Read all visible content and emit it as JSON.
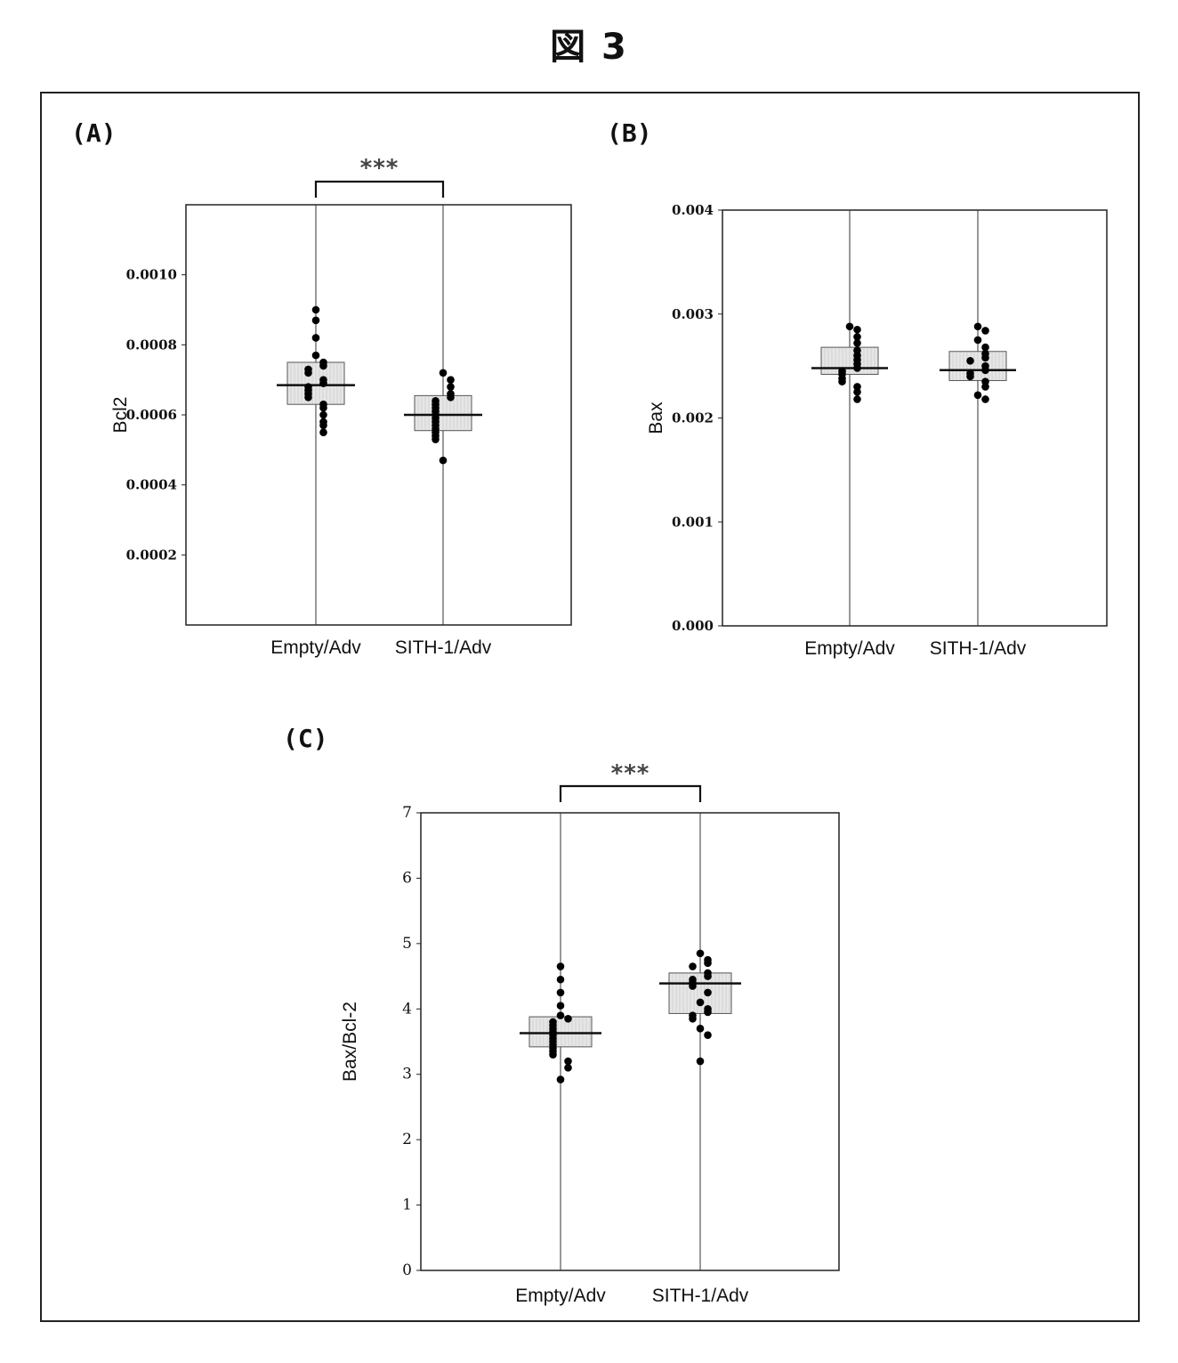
{
  "figure_title": "図 3",
  "panels": [
    {
      "label": "(A)"
    },
    {
      "label": "(B)"
    },
    {
      "label": "(C)"
    }
  ],
  "chart_data": [
    {
      "panel": "(A)",
      "type": "scatter",
      "ylabel": "Bcl2",
      "xlabel": "",
      "ylim": [
        0,
        0.0012
      ],
      "yticks": [
        0.0002,
        0.0004,
        0.0006,
        0.0008,
        0.001
      ],
      "ytick_labels": [
        "0.0002",
        "0.0004",
        "0.0006",
        "0.0008",
        "0.0010"
      ],
      "categories": [
        "Empty/Adv",
        "SITH-1/Adv"
      ],
      "significance": "***",
      "grid": false,
      "series": [
        {
          "category": "Empty/Adv",
          "box_low": 0.00063,
          "box_high": 0.00075,
          "median": 0.000685,
          "points": [
            0.0009,
            0.00087,
            0.00082,
            0.00077,
            0.00075,
            0.00074,
            0.00073,
            0.00072,
            0.0007,
            0.00069,
            0.00068,
            0.00067,
            0.00066,
            0.00065,
            0.00063,
            0.00062,
            0.0006,
            0.00058,
            0.00057,
            0.00055
          ]
        },
        {
          "category": "SITH-1/Adv",
          "box_low": 0.000555,
          "box_high": 0.000655,
          "median": 0.0006,
          "points": [
            0.00072,
            0.0007,
            0.00068,
            0.00066,
            0.00065,
            0.00064,
            0.00063,
            0.00062,
            0.00061,
            0.0006,
            0.00059,
            0.00058,
            0.00057,
            0.00056,
            0.00055,
            0.00054,
            0.00053,
            0.00047
          ]
        }
      ]
    },
    {
      "panel": "(B)",
      "type": "scatter",
      "ylabel": "Bax",
      "xlabel": "",
      "ylim": [
        0,
        0.004
      ],
      "yticks": [
        0.0,
        0.001,
        0.002,
        0.003,
        0.004
      ],
      "ytick_labels": [
        "0.000",
        "0.001",
        "0.002",
        "0.003",
        "0.004"
      ],
      "categories": [
        "Empty/Adv",
        "SITH-1/Adv"
      ],
      "grid": false,
      "series": [
        {
          "category": "Empty/Adv",
          "box_low": 0.00242,
          "box_high": 0.00268,
          "median": 0.00248,
          "points": [
            0.00288,
            0.00285,
            0.00278,
            0.00272,
            0.00265,
            0.0026,
            0.00256,
            0.00252,
            0.00248,
            0.00245,
            0.00242,
            0.00238,
            0.00235,
            0.0023,
            0.00225,
            0.00218
          ]
        },
        {
          "category": "SITH-1/Adv",
          "box_low": 0.00236,
          "box_high": 0.00264,
          "median": 0.00246,
          "points": [
            0.00288,
            0.00284,
            0.00275,
            0.00268,
            0.00262,
            0.00258,
            0.00255,
            0.0025,
            0.00246,
            0.00243,
            0.0024,
            0.00235,
            0.0023,
            0.00222,
            0.00218
          ]
        }
      ]
    },
    {
      "panel": "(C)",
      "type": "scatter",
      "ylabel": "Bax/Bcl-2",
      "xlabel": "",
      "ylim": [
        0,
        7
      ],
      "yticks": [
        0,
        1,
        2,
        3,
        4,
        5,
        6,
        7
      ],
      "ytick_labels": [
        "0",
        "1",
        "2",
        "3",
        "4",
        "5",
        "6",
        "7"
      ],
      "categories": [
        "Empty/Adv",
        "SITH-1/Adv"
      ],
      "significance": "***",
      "grid": false,
      "series": [
        {
          "category": "Empty/Adv",
          "box_low": 3.42,
          "box_high": 3.88,
          "median": 3.63,
          "points": [
            4.65,
            4.45,
            4.25,
            4.05,
            3.9,
            3.85,
            3.8,
            3.75,
            3.7,
            3.65,
            3.6,
            3.55,
            3.5,
            3.45,
            3.4,
            3.35,
            3.3,
            3.2,
            3.1,
            2.92
          ]
        },
        {
          "category": "SITH-1/Adv",
          "box_low": 3.93,
          "box_high": 4.55,
          "median": 4.39,
          "points": [
            4.85,
            4.75,
            4.7,
            4.65,
            4.55,
            4.5,
            4.45,
            4.4,
            4.35,
            4.25,
            4.1,
            4.0,
            3.95,
            3.9,
            3.85,
            3.7,
            3.6,
            3.2
          ]
        }
      ]
    }
  ]
}
